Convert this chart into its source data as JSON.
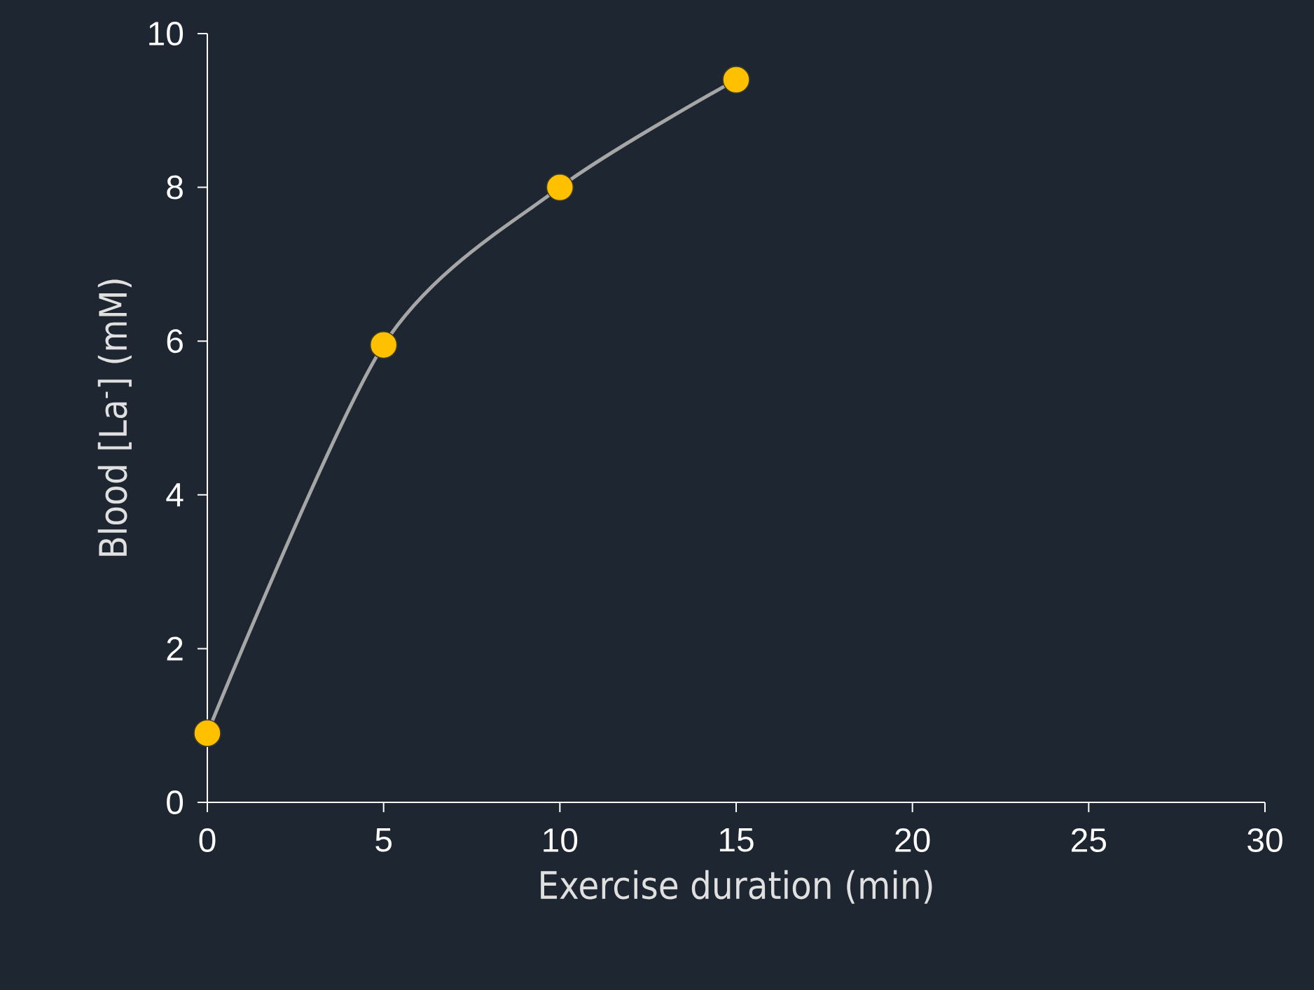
{
  "chart_data": {
    "type": "line",
    "xlabel": "Exercise duration  (min)",
    "ylabel": "Blood [La$^{-}$]  (mM)",
    "x": [
      0,
      5,
      10,
      15
    ],
    "series": [
      {
        "color": "#a6a6a6",
        "values": [
          0.9,
          5.95,
          8.0,
          9.4
        ]
      }
    ],
    "marker": "circle",
    "xlim": [
      0,
      30
    ],
    "xticks": [
      0,
      5,
      10,
      15,
      20,
      25,
      30
    ],
    "ylim": [
      0,
      10
    ],
    "yticks": [
      0,
      2,
      4,
      6,
      8,
      10
    ],
    "grid": false
  }
}
